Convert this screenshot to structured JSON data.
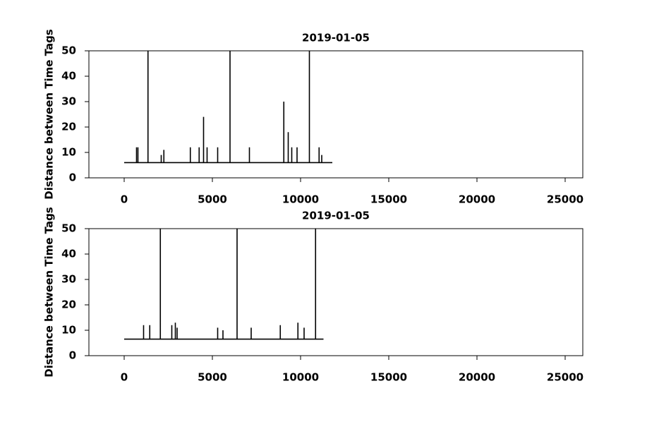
{
  "chart_data": [
    {
      "type": "line",
      "title": "2019-01-05",
      "y_label": "Distance between Time Tags",
      "color": "#000000",
      "x": [
        0,
        700,
        700,
        700,
        780,
        780,
        780,
        1350,
        1350,
        1350,
        2100,
        2100,
        2100,
        2250,
        2250,
        2250,
        3750,
        3750,
        3750,
        4250,
        4250,
        4250,
        4500,
        4500,
        4500,
        4700,
        4700,
        4700,
        5300,
        5300,
        5300,
        6000,
        6000,
        6000,
        7100,
        7100,
        7100,
        9050,
        9050,
        9050,
        9300,
        9300,
        9300,
        9500,
        9500,
        9500,
        9800,
        9800,
        9800,
        10500,
        10500,
        10500,
        11050,
        11050,
        11050,
        11200,
        11200,
        11200,
        11800
      ],
      "values": [
        6,
        6,
        12,
        6,
        6,
        12,
        6,
        6,
        50,
        6,
        6,
        9,
        6,
        6,
        11,
        6,
        6,
        12,
        6,
        6,
        12,
        6,
        6,
        24,
        6,
        6,
        12,
        6,
        6,
        12,
        6,
        6,
        50,
        6,
        6,
        12,
        6,
        6,
        30,
        6,
        6,
        18,
        6,
        6,
        12,
        6,
        6,
        12,
        6,
        6,
        50,
        6,
        6,
        12,
        6,
        6,
        9,
        6,
        6
      ],
      "xlim": [
        -2000,
        26000
      ],
      "xticks": [
        0,
        5000,
        10000,
        15000,
        20000,
        25000
      ],
      "ylim": [
        0,
        50
      ],
      "yticks": [
        0,
        10,
        20,
        30,
        40,
        50
      ],
      "grid": false
    },
    {
      "type": "line",
      "title": "2019-01-05",
      "y_label": "Distance between Time Tags",
      "color": "#000000",
      "x": [
        0,
        1100,
        1100,
        1100,
        1450,
        1450,
        1450,
        2050,
        2050,
        2050,
        2700,
        2700,
        2700,
        2900,
        2900,
        2900,
        3000,
        3000,
        3000,
        5300,
        5300,
        5300,
        5600,
        5600,
        5600,
        6400,
        6400,
        6400,
        7200,
        7200,
        7200,
        8850,
        8850,
        8850,
        9850,
        9850,
        9850,
        10200,
        10200,
        10200,
        10850,
        10850,
        10850,
        11300
      ],
      "values": [
        6.5,
        6.5,
        12,
        6.5,
        6.5,
        12,
        6.5,
        6.5,
        50,
        6.5,
        6.5,
        12,
        6.5,
        6.5,
        13,
        6.5,
        6.5,
        11,
        6.5,
        6.5,
        11,
        6.5,
        6.5,
        10,
        6.5,
        6.5,
        50,
        6.5,
        6.5,
        11,
        6.5,
        6.5,
        12,
        6.5,
        6.5,
        13,
        6.5,
        6.5,
        11,
        6.5,
        6.5,
        50,
        6.5,
        6.5
      ],
      "xlim": [
        -2000,
        26000
      ],
      "xticks": [
        0,
        5000,
        10000,
        15000,
        20000,
        25000
      ],
      "ylim": [
        0,
        50
      ],
      "yticks": [
        0,
        10,
        20,
        30,
        40,
        50
      ],
      "grid": false
    }
  ]
}
